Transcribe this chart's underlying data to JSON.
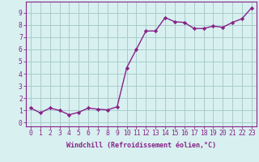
{
  "x": [
    0,
    1,
    2,
    3,
    4,
    5,
    6,
    7,
    8,
    9,
    10,
    11,
    12,
    13,
    14,
    15,
    16,
    17,
    18,
    19,
    20,
    21,
    22,
    23
  ],
  "y": [
    1.2,
    0.8,
    1.2,
    1.0,
    0.65,
    0.85,
    1.2,
    1.1,
    1.05,
    1.3,
    4.5,
    6.0,
    7.5,
    7.5,
    8.6,
    8.25,
    8.2,
    7.7,
    7.7,
    7.9,
    7.8,
    8.2,
    8.5,
    9.4
  ],
  "line_color": "#882288",
  "marker": "D",
  "marker_size": 2.2,
  "background_color": "#d8f0f0",
  "grid_color": "#aacccc",
  "xlabel": "Windchill (Refroidissement éolien,°C)",
  "xlim": [
    -0.5,
    23.5
  ],
  "ylim": [
    -0.3,
    9.9
  ],
  "xticks": [
    0,
    1,
    2,
    3,
    4,
    5,
    6,
    7,
    8,
    9,
    10,
    11,
    12,
    13,
    14,
    15,
    16,
    17,
    18,
    19,
    20,
    21,
    22,
    23
  ],
  "yticks": [
    0,
    1,
    2,
    3,
    4,
    5,
    6,
    7,
    8,
    9
  ],
  "tick_color": "#882288",
  "label_color": "#882288",
  "spine_color": "#882288",
  "xlabel_fontsize": 6.0,
  "tick_fontsize": 5.8,
  "linewidth": 1.0
}
